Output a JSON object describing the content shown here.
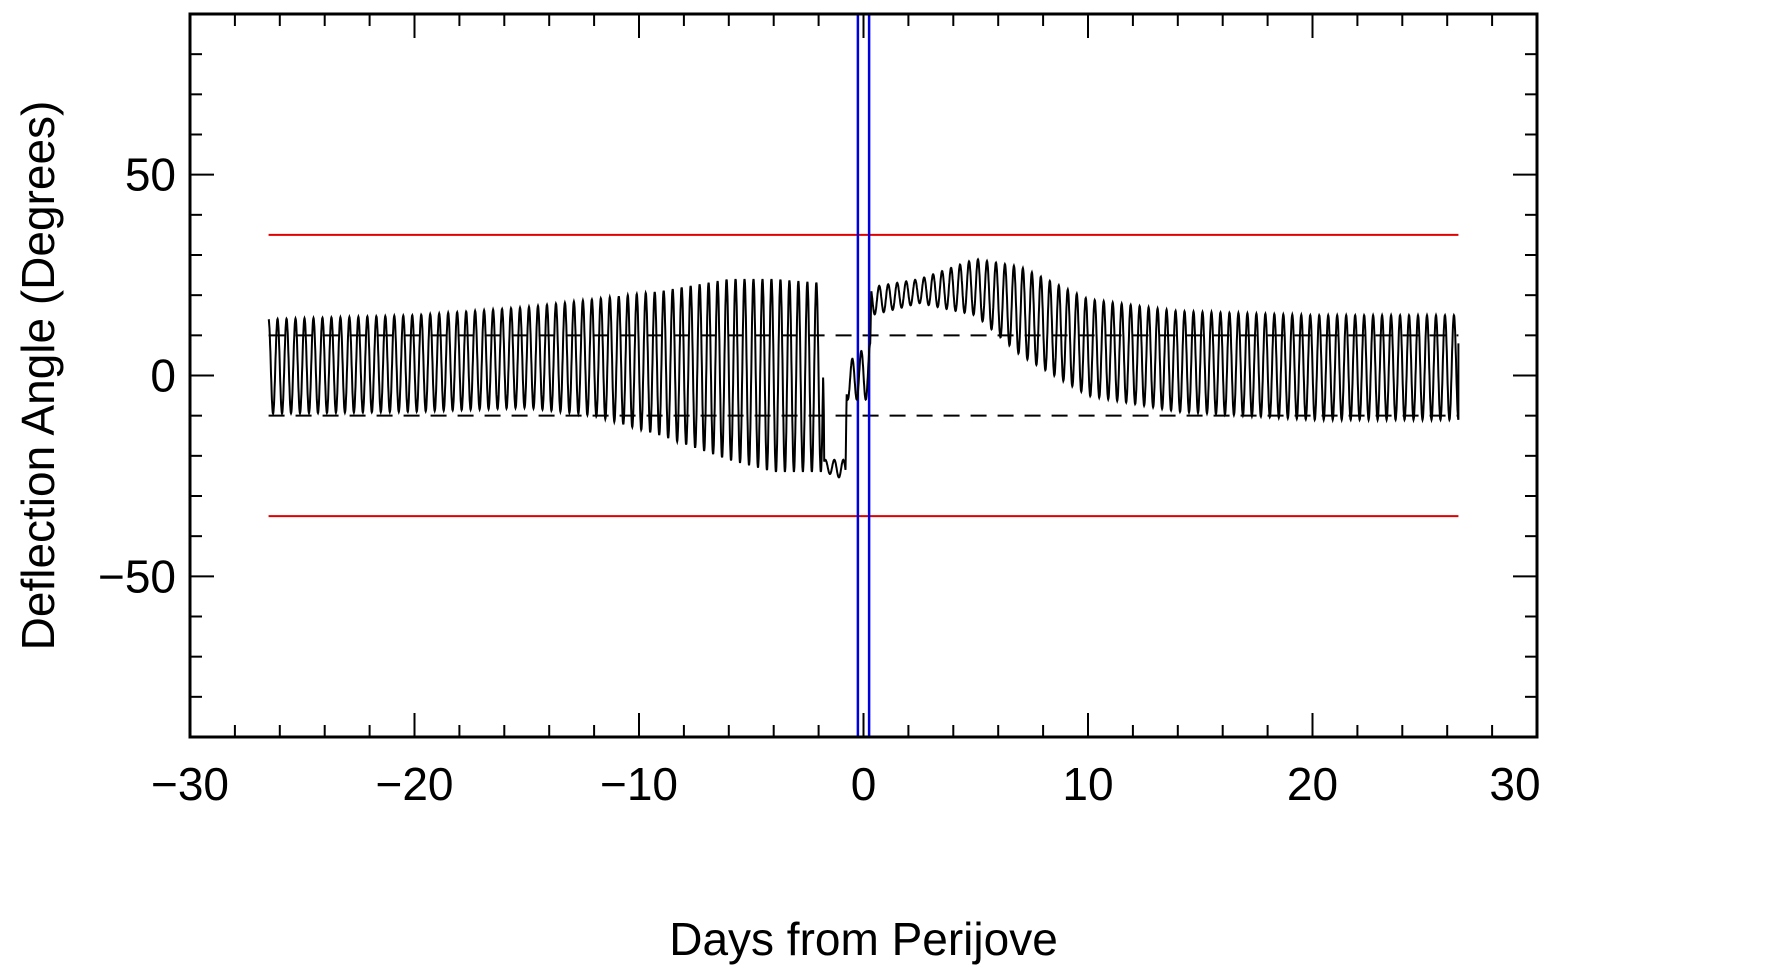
{
  "chart_data": {
    "type": "line",
    "title": "",
    "xlabel": "Days from Perijove",
    "ylabel": "Deflection Angle (Degrees)",
    "xlim": [
      -30,
      30
    ],
    "ylim": [
      -90,
      90
    ],
    "x_major_ticks": [
      -30,
      -20,
      -10,
      0,
      10,
      20,
      30
    ],
    "x_tick_labels": [
      "−30",
      "−20",
      "−10",
      "0",
      "10",
      "20",
      "30"
    ],
    "y_major_ticks": [
      -50,
      0,
      50
    ],
    "y_tick_labels": [
      "−50",
      "0",
      "50"
    ],
    "grid": false,
    "reference_lines": {
      "red_solid": [
        35,
        -35
      ],
      "black_dashed": [
        10,
        -10
      ],
      "blue_vertical": [
        -0.25,
        0.25
      ]
    },
    "series": [
      {
        "style": "oscillating",
        "color": "#000000",
        "period_days": 0.4,
        "envelope": [
          {
            "x": -26.5,
            "lo": -9.5,
            "hi": 14
          },
          {
            "x": -20,
            "lo": -9,
            "hi": 15
          },
          {
            "x": -15,
            "lo": -8,
            "hi": 17
          },
          {
            "x": -12,
            "lo": -10,
            "hi": 19
          },
          {
            "x": -9,
            "lo": -15,
            "hi": 21
          },
          {
            "x": -6,
            "lo": -21,
            "hi": 24
          },
          {
            "x": -4,
            "lo": -24,
            "hi": 24
          },
          {
            "x": -1.8,
            "lo": -24,
            "hi": 23
          },
          {
            "x": -1.75,
            "lo": -24,
            "hi": -21
          },
          {
            "x": -0.8,
            "lo": -26,
            "hi": -21
          },
          {
            "x": -0.75,
            "lo": -6,
            "hi": 3
          },
          {
            "x": 0.3,
            "lo": -6,
            "hi": 8
          },
          {
            "x": 0.35,
            "lo": 15,
            "hi": 22
          },
          {
            "x": 2.5,
            "lo": 18,
            "hi": 24
          },
          {
            "x": 5,
            "lo": 15,
            "hi": 29
          },
          {
            "x": 7,
            "lo": 5,
            "hi": 27
          },
          {
            "x": 10,
            "lo": -5,
            "hi": 19
          },
          {
            "x": 14,
            "lo": -9,
            "hi": 16
          },
          {
            "x": 20,
            "lo": -11,
            "hi": 15
          },
          {
            "x": 26.5,
            "lo": -11,
            "hi": 15
          }
        ],
        "last_value": 8
      }
    ]
  }
}
